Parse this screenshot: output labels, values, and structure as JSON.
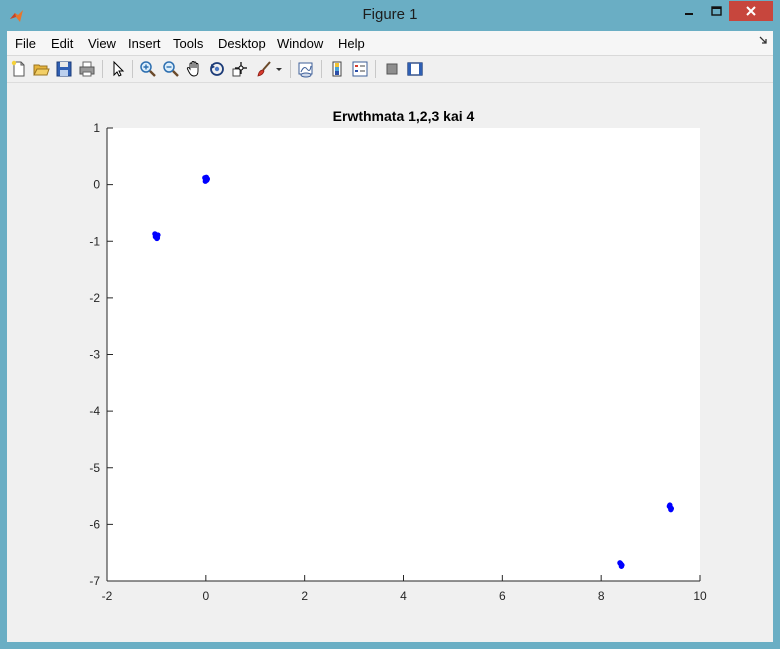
{
  "window": {
    "title": "Figure 1",
    "minimize_icon": "minimize-icon",
    "maximize_icon": "maximize-icon",
    "close_icon": "close-icon"
  },
  "menubar": {
    "items": [
      "File",
      "Edit",
      "View",
      "Insert",
      "Tools",
      "Desktop",
      "Window",
      "Help"
    ]
  },
  "toolbar": {
    "icons": [
      "new-figure-icon",
      "open-icon",
      "save-icon",
      "print-icon",
      "pointer-icon",
      "zoom-in-icon",
      "zoom-out-icon",
      "pan-icon",
      "rotate-icon",
      "data-cursor-icon",
      "brush-icon",
      "brush-dropdown-icon",
      "link-plot-icon",
      "colorbar-icon",
      "legend-icon",
      "hide-plot-tools-icon",
      "show-plot-tools-icon"
    ]
  },
  "chart_data": {
    "type": "scatter",
    "title": "Erwthmata 1,2,3 kai 4",
    "xlabel": "",
    "ylabel": "",
    "xlim": [
      -2,
      10
    ],
    "ylim": [
      -7,
      1
    ],
    "xticks": [
      "-2",
      "0",
      "2",
      "4",
      "6",
      "8",
      "10"
    ],
    "yticks": [
      "1",
      "0",
      "-1",
      "-2",
      "-3",
      "-4",
      "-5",
      "-6",
      "-7"
    ],
    "grid": false,
    "marker_color": "#0000ff",
    "series": [
      {
        "points": [
          [
            -1.0,
            -0.9
          ],
          [
            -1.02,
            -0.92
          ],
          [
            -0.98,
            -0.94
          ],
          [
            -0.97,
            -0.89
          ],
          [
            -1.03,
            -0.87
          ],
          [
            -0.99,
            -0.95
          ],
          [
            0.0,
            0.1
          ],
          [
            -0.02,
            0.12
          ],
          [
            0.02,
            0.08
          ],
          [
            -0.01,
            0.06
          ],
          [
            0.01,
            0.13
          ],
          [
            0.03,
            0.1
          ],
          [
            8.4,
            -6.7
          ],
          [
            8.42,
            -6.72
          ],
          [
            8.38,
            -6.68
          ],
          [
            8.41,
            -6.74
          ],
          [
            8.39,
            -6.69
          ],
          [
            9.4,
            -5.7
          ],
          [
            9.42,
            -5.72
          ],
          [
            9.38,
            -5.68
          ],
          [
            9.41,
            -5.74
          ],
          [
            9.39,
            -5.66
          ]
        ]
      }
    ]
  }
}
